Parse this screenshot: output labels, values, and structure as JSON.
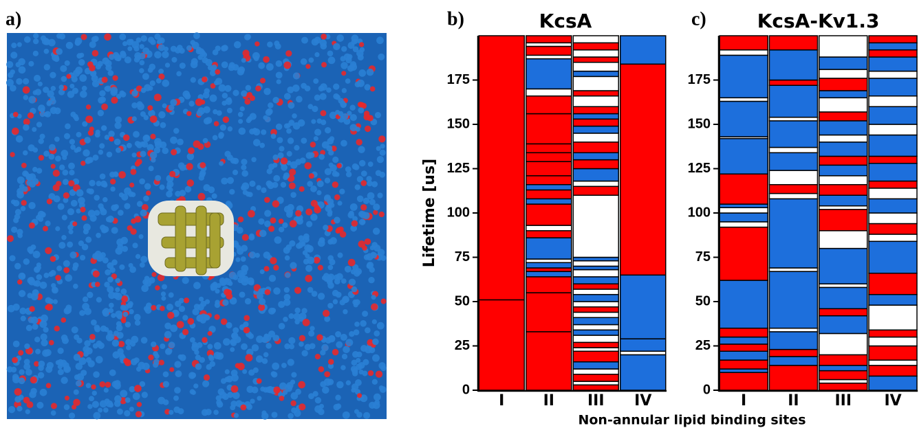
{
  "panels": [
    "a)",
    "b)",
    "c)"
  ],
  "xlabel": "Non-annular  lipid binding sites",
  "palette": {
    "r": "#ff0000",
    "b": "#1d6fdc",
    "w": "#ffffff"
  },
  "chart_data": [
    {
      "type": "bar",
      "stacked": true,
      "title": "KcsA",
      "ylabel": "Lifetime [us]",
      "categories": [
        "I",
        "II",
        "III",
        "IV"
      ],
      "ylim": [
        0,
        200
      ],
      "yticks": [
        0,
        25,
        50,
        75,
        100,
        125,
        150,
        175
      ],
      "stacks": [
        [
          51,
          149
        ],
        [
          33,
          22,
          9,
          3,
          2,
          3,
          2,
          12,
          4,
          3,
          12,
          3,
          5,
          3,
          5,
          8,
          5,
          5,
          17,
          10,
          4,
          17,
          2,
          5,
          2,
          4
        ],
        [
          3,
          2,
          4,
          3,
          4,
          6,
          2,
          3,
          4,
          3,
          3,
          4,
          3,
          3,
          3,
          4,
          3,
          3,
          4,
          4,
          2,
          3,
          2,
          35,
          5,
          3,
          7,
          5,
          4,
          6,
          5,
          4,
          4,
          3,
          4,
          6,
          3,
          8,
          3,
          5,
          3,
          4,
          4,
          4
        ],
        [
          20,
          2,
          7,
          36,
          119,
          16
        ]
      ],
      "stack_colors": [
        [
          "r",
          "r"
        ],
        [
          "r",
          "r",
          "r",
          "b",
          "r",
          "b",
          "w",
          "b",
          "r",
          "w",
          "r",
          "b",
          "r",
          "b",
          "r",
          "r",
          "r",
          "r",
          "r",
          "r",
          "w",
          "b",
          "w",
          "r",
          "w",
          "r"
        ],
        [
          "r",
          "w",
          "r",
          "w",
          "b",
          "r",
          "w",
          "r",
          "w",
          "b",
          "w",
          "b",
          "w",
          "r",
          "w",
          "b",
          "w",
          "r",
          "b",
          "w",
          "b",
          "w",
          "b",
          "w",
          "r",
          "w",
          "b",
          "r",
          "b",
          "r",
          "w",
          "b",
          "r",
          "b",
          "r",
          "w",
          "r",
          "w",
          "b",
          "w",
          "r",
          "w",
          "r",
          "w"
        ],
        [
          "b",
          "w",
          "b",
          "b",
          "r",
          "b"
        ]
      ]
    },
    {
      "type": "bar",
      "stacked": true,
      "title": "KcsA-Kv1.3",
      "categories": [
        "I",
        "II",
        "III",
        "IV"
      ],
      "ylim": [
        0,
        200
      ],
      "yticks": [
        0,
        25,
        50,
        75,
        100,
        125,
        150,
        175
      ],
      "stacks": [
        [
          10,
          2,
          5,
          5,
          4,
          4,
          5,
          27,
          30,
          3,
          5,
          3,
          2,
          17,
          20,
          1,
          20,
          2,
          24,
          3,
          8
        ],
        [
          14,
          5,
          4,
          10,
          2,
          32,
          2,
          39,
          3,
          5,
          8,
          10,
          3,
          15,
          2,
          18,
          3,
          17,
          8
        ],
        [
          4,
          2,
          5,
          3,
          6,
          12,
          10,
          4,
          12,
          2,
          20,
          10,
          12,
          2,
          6,
          6,
          5,
          6,
          5,
          8,
          4,
          8,
          5,
          8,
          4,
          7,
          5,
          7,
          12
        ],
        [
          8,
          6,
          3,
          8,
          5,
          4,
          14,
          6,
          12,
          18,
          4,
          6,
          6,
          8,
          6,
          4,
          10,
          4,
          12,
          6,
          10,
          6,
          10,
          4,
          8,
          4,
          4,
          4
        ]
      ],
      "stack_colors": [
        [
          "r",
          "b",
          "r",
          "b",
          "r",
          "b",
          "r",
          "b",
          "r",
          "w",
          "b",
          "w",
          "b",
          "r",
          "b",
          "w",
          "b",
          "w",
          "b",
          "w",
          "r"
        ],
        [
          "r",
          "b",
          "r",
          "b",
          "w",
          "b",
          "w",
          "b",
          "w",
          "r",
          "w",
          "b",
          "w",
          "b",
          "w",
          "b",
          "r",
          "b",
          "r"
        ],
        [
          "r",
          "w",
          "r",
          "b",
          "r",
          "w",
          "b",
          "r",
          "b",
          "w",
          "b",
          "w",
          "r",
          "w",
          "b",
          "r",
          "w",
          "b",
          "r",
          "b",
          "w",
          "b",
          "r",
          "w",
          "b",
          "r",
          "w",
          "b",
          "w"
        ],
        [
          "b",
          "r",
          "w",
          "r",
          "w",
          "r",
          "w",
          "b",
          "r",
          "b",
          "w",
          "r",
          "w",
          "b",
          "w",
          "r",
          "b",
          "r",
          "b",
          "w",
          "b",
          "w",
          "b",
          "w",
          "b",
          "r",
          "b",
          "r"
        ]
      ]
    }
  ]
}
